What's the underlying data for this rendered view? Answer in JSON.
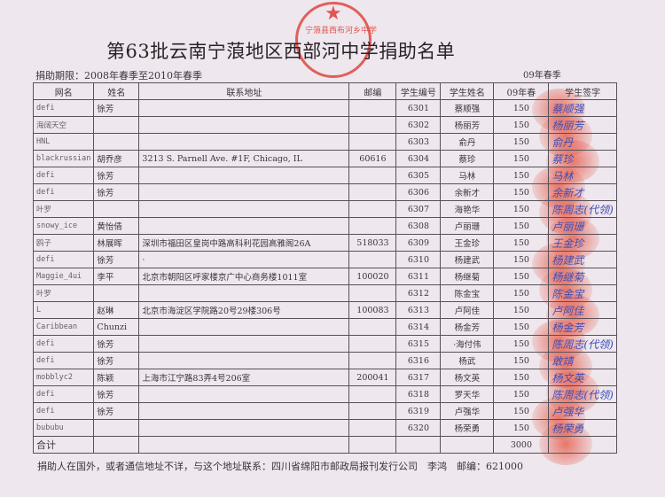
{
  "title": "第63批云南宁蒗地区西部河中学捐助名单",
  "period": "捐助期限：2008年春季至2010年春季",
  "season": "09年春季",
  "stamp_text": "宁蒗县西布河乡中学",
  "headers": [
    "网名",
    "姓名",
    "联系地址",
    "邮编",
    "学生编号",
    "学生姓名",
    "09年春",
    "学生签字"
  ],
  "rows": [
    {
      "net": "defi",
      "name": "徐芳",
      "addr": "",
      "zip": "",
      "id": "6301",
      "student": "蔡顺强",
      "amt": "150",
      "sig": "蔡顺强"
    },
    {
      "net": "海阔天空",
      "name": "",
      "addr": "",
      "zip": "",
      "id": "6302",
      "student": "杨丽芳",
      "amt": "150",
      "sig": "杨丽芳"
    },
    {
      "net": "HNL",
      "name": "",
      "addr": "",
      "zip": "",
      "id": "6303",
      "student": "俞丹",
      "amt": "150",
      "sig": "俞丹"
    },
    {
      "net": "blackrussian",
      "name": "胡乔彦",
      "addr": "3213 S. Parnell Ave. #1F, Chicago, IL",
      "zip": "60616",
      "id": "6304",
      "student": "蔡珍",
      "amt": "150",
      "sig": "蔡珍"
    },
    {
      "net": "defi",
      "name": "徐芳",
      "addr": "",
      "zip": "",
      "id": "6305",
      "student": "马林",
      "amt": "150",
      "sig": "马林"
    },
    {
      "net": "defi",
      "name": "徐芳",
      "addr": "",
      "zip": "",
      "id": "6306",
      "student": "余新才",
      "amt": "150",
      "sig": "余新才"
    },
    {
      "net": "叶罗",
      "name": "",
      "addr": "",
      "zip": "",
      "id": "6307",
      "student": "海艳华",
      "amt": "150",
      "sig": "陈周志(代领)"
    },
    {
      "net": "snowy_ice",
      "name": "黄怡倩",
      "addr": "",
      "zip": "",
      "id": "6308",
      "student": "卢丽珊",
      "amt": "150",
      "sig": "卢丽珊"
    },
    {
      "net": "鸥子",
      "name": "林展晖",
      "addr": "深圳市福田区皇岗中路高科利花园高雅阁26A",
      "zip": "518033",
      "id": "6309",
      "student": "王金珍",
      "amt": "150",
      "sig": "王金珍"
    },
    {
      "net": "defi",
      "name": "徐芳",
      "addr": "·",
      "zip": "",
      "id": "6310",
      "student": "杨建武",
      "amt": "150",
      "sig": "杨建武"
    },
    {
      "net": "Maggie_4ui",
      "name": "李平",
      "addr": "北京市朝阳区呼家楼京广中心商务楼1011室",
      "zip": "100020",
      "id": "6311",
      "student": "杨继菊",
      "amt": "150",
      "sig": "杨继菊"
    },
    {
      "net": "叶罗",
      "name": "",
      "addr": "",
      "zip": "",
      "id": "6312",
      "student": "陈金宝",
      "amt": "150",
      "sig": "陈金宝"
    },
    {
      "net": "L",
      "name": "赵琳",
      "addr": "北京市海淀区学院路20号29楼306号",
      "zip": "100083",
      "id": "6313",
      "student": "卢阿佳",
      "amt": "150",
      "sig": "卢阿佳"
    },
    {
      "net": "Caribbean",
      "name": "Chunzi",
      "addr": "",
      "zip": "",
      "id": "6314",
      "student": "杨金芳",
      "amt": "150",
      "sig": "杨金芳"
    },
    {
      "net": "defi",
      "name": "徐芳",
      "addr": "",
      "zip": "",
      "id": "6315",
      "student": "·海付伟",
      "amt": "150",
      "sig": "陈周志(代领)"
    },
    {
      "net": "defi",
      "name": "徐芳",
      "addr": "",
      "zip": "",
      "id": "6316",
      "student": "杨武",
      "amt": "150",
      "sig": "敢靖"
    },
    {
      "net": "mobblyc2",
      "name": "陈颖",
      "addr": "上海市江宁路83弄4号206室",
      "zip": "200041",
      "id": "6317",
      "student": "杨文英",
      "amt": "150",
      "sig": "杨文英"
    },
    {
      "net": "defi",
      "name": "徐芳",
      "addr": "",
      "zip": "",
      "id": "6318",
      "student": "罗天华",
      "amt": "150",
      "sig": "陈周志(代领)"
    },
    {
      "net": "defi",
      "name": "徐芳",
      "addr": "",
      "zip": "",
      "id": "6319",
      "student": "卢强华",
      "amt": "150",
      "sig": "卢强华"
    },
    {
      "net": "bububu",
      "name": "",
      "addr": "",
      "zip": "",
      "id": "6320",
      "student": "杨荣勇",
      "amt": "150",
      "sig": "杨荣勇"
    }
  ],
  "total_label": "合计",
  "total_amount": "3000",
  "footer": "捐助人在国外，或者通信地址不详，与这个地址联系：四川省绵阳市邮政局报刊发行公司　李鸿　邮编：621000"
}
